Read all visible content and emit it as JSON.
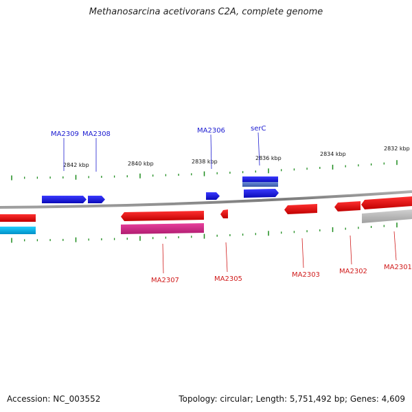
{
  "title": "Methanosarcina acetivorans C2A, complete genome",
  "footer": {
    "accession": "Accession: NC_003552",
    "summary": "Topology: circular; Length: 5,751,492 bp; Genes: 4,609"
  },
  "colors": {
    "forward_gene": "#1414e6",
    "reverse_gene": "#e61414",
    "rna_gene": "#d42a8c",
    "forward_cds": "#2060d0",
    "pseudo_gene": "#b8b8b8",
    "cyan_gene": "#10b8e8",
    "backbone": "#888888",
    "tick": "#1a8a1a",
    "label_forward": "#1a1ad0",
    "label_reverse": "#d01a1a"
  },
  "scale_labels": [
    {
      "id": "2842",
      "text": "2842 kbp"
    },
    {
      "id": "2840",
      "text": "2840 kbp"
    },
    {
      "id": "2838",
      "text": "2838 kbp"
    },
    {
      "id": "2836",
      "text": "2836 kbp"
    },
    {
      "id": "2834",
      "text": "2834 kbp"
    },
    {
      "id": "2832",
      "text": "2832 kbp"
    }
  ],
  "gene_labels_forward": [
    "MA2309",
    "MA2308",
    "MA2306",
    "serC"
  ],
  "gene_labels_reverse": [
    "MA2307",
    "MA2305",
    "MA2303",
    "MA2302",
    "MA2301"
  ]
}
